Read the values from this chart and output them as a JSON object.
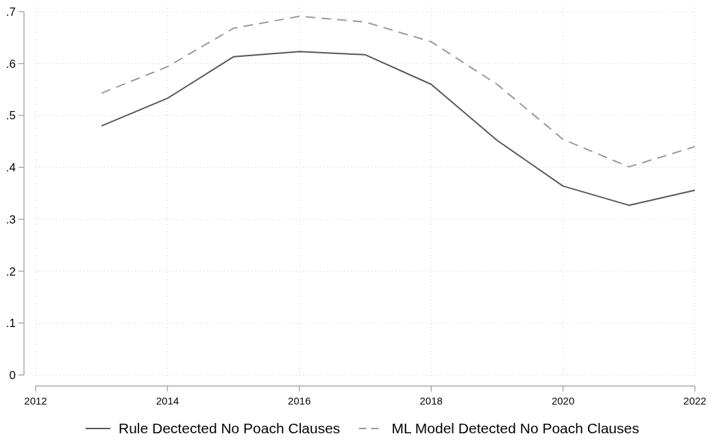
{
  "chart_data": {
    "type": "line",
    "x": [
      2013,
      2014,
      2015,
      2016,
      2017,
      2018,
      2019,
      2020,
      2021,
      2022
    ],
    "series": [
      {
        "name": "Rule Dectected No Poach Clauses",
        "color": "#555555",
        "line_style": "solid",
        "values": [
          0.48,
          0.533,
          0.613,
          0.623,
          0.617,
          0.56,
          0.452,
          0.364,
          0.327,
          0.356
        ]
      },
      {
        "name": "ML Model Detected No Poach Clauses",
        "color": "#999999",
        "line_style": "dashed",
        "values": [
          0.543,
          0.594,
          0.668,
          0.691,
          0.68,
          0.642,
          0.56,
          0.454,
          0.401,
          0.44
        ]
      }
    ],
    "xlim": [
      2012,
      2022
    ],
    "xticks": [
      2012,
      2014,
      2016,
      2018,
      2020,
      2022
    ],
    "ylim": [
      0,
      0.7
    ],
    "yticks": [
      {
        "value": 0,
        "label": "0"
      },
      {
        "value": 0.1,
        "label": ".1"
      },
      {
        "value": 0.2,
        "label": ".2"
      },
      {
        "value": 0.3,
        "label": ".3"
      },
      {
        "value": 0.4,
        "label": ".4"
      },
      {
        "value": 0.5,
        "label": ".5"
      },
      {
        "value": 0.6,
        "label": ".6"
      },
      {
        "value": 0.7,
        "label": ".7"
      }
    ],
    "grid": true,
    "legend": "bottom",
    "marker": "none"
  }
}
